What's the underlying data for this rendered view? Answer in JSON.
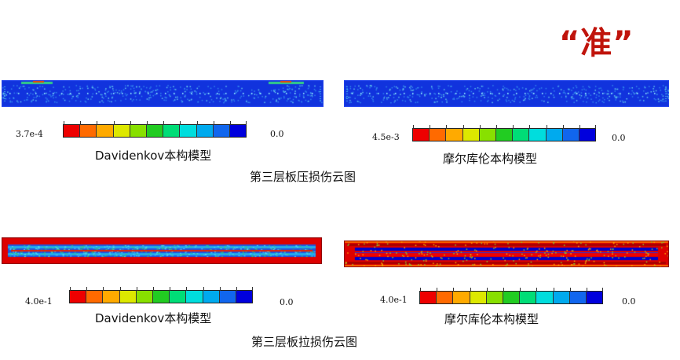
{
  "title_mark": "“准”",
  "legend_colors": [
    "#ee0000",
    "#ff6a00",
    "#ffaa00",
    "#dde800",
    "#88e000",
    "#22cc22",
    "#00dd77",
    "#00dddd",
    "#00aaee",
    "#1166ee",
    "#0000dd"
  ],
  "panels": [
    {
      "id": "compress-davidenkov",
      "max_label": "3.7e-4",
      "min_label": "0.0",
      "caption": "Davidenkov本构模型",
      "pattern": "sparse-blue"
    },
    {
      "id": "compress-moore",
      "max_label": "4.5e-3",
      "min_label": "0.0",
      "caption": "摩尔库伦本构模型",
      "pattern": "sparse-blue"
    },
    {
      "id": "tension-davidenkov",
      "max_label": "4.0e-1",
      "min_label": "0.0",
      "caption": "Davidenkov本构模型",
      "pattern": "banded-red"
    },
    {
      "id": "tension-moore",
      "max_label": "4.0e-1",
      "min_label": "0.0",
      "caption": "摩尔库伦本构模型",
      "pattern": "banded-red"
    }
  ],
  "section_titles": {
    "compress": "第三层板压损伤云图",
    "tension": "第三层板拉损伤云图"
  }
}
